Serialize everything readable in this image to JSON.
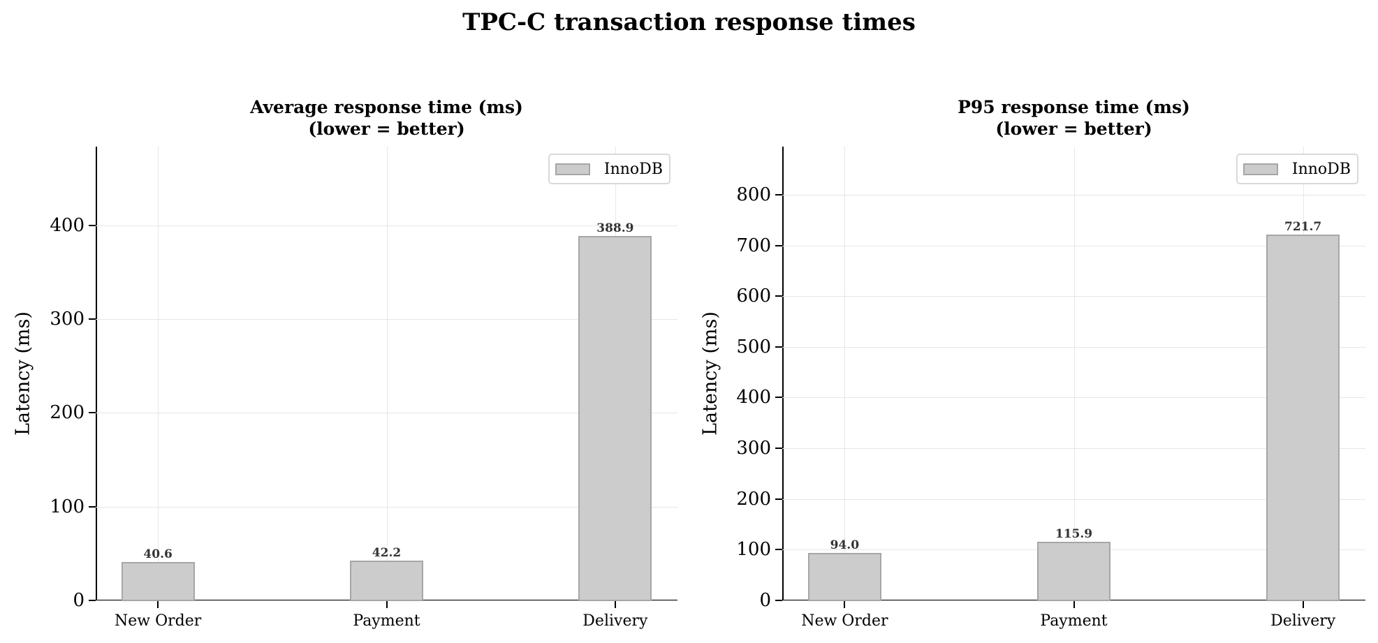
{
  "figure": {
    "suptitle": "TPC-C transaction response times"
  },
  "panels": [
    {
      "title_line1": "Average response time (ms)",
      "title_line2": "(lower = better)",
      "ylabel": "Latency (ms)",
      "legend_label": "InnoDB",
      "yticks": [
        "0",
        "100",
        "200",
        "300",
        "400"
      ],
      "categories": [
        "New Order",
        "Payment",
        "Delivery"
      ],
      "value_labels": [
        "40.6",
        "42.2",
        "388.9"
      ]
    },
    {
      "title_line1": "P95 response time (ms)",
      "title_line2": "(lower = better)",
      "ylabel": "Latency (ms)",
      "legend_label": "InnoDB",
      "yticks": [
        "0",
        "100",
        "200",
        "300",
        "400",
        "500",
        "600",
        "700",
        "800"
      ],
      "categories": [
        "New Order",
        "Payment",
        "Delivery"
      ],
      "value_labels": [
        "94.0",
        "115.9",
        "721.7"
      ]
    }
  ],
  "colors": {
    "bar_fill": "#cccccc",
    "bar_edge": "#a6a6a6",
    "grid": "#e6e6e6",
    "value_label": "#333333"
  },
  "chart_data": [
    {
      "type": "bar",
      "title": "Average response time (ms) (lower = better)",
      "suptitle": "TPC-C transaction response times",
      "categories": [
        "New Order",
        "Payment",
        "Delivery"
      ],
      "series": [
        {
          "name": "InnoDB",
          "values": [
            40.6,
            42.2,
            388.9
          ]
        }
      ],
      "xlabel": "",
      "ylabel": "Latency (ms)",
      "ylim": [
        0,
        484
      ],
      "yticks": [
        0,
        100,
        200,
        300,
        400
      ],
      "grid": true,
      "legend_position": "upper right"
    },
    {
      "type": "bar",
      "title": "P95 response time (ms) (lower = better)",
      "suptitle": "TPC-C transaction response times",
      "categories": [
        "New Order",
        "Payment",
        "Delivery"
      ],
      "series": [
        {
          "name": "InnoDB",
          "values": [
            94.0,
            115.9,
            721.7
          ]
        }
      ],
      "xlabel": "",
      "ylabel": "Latency (ms)",
      "ylim": [
        0,
        895
      ],
      "yticks": [
        0,
        100,
        200,
        300,
        400,
        500,
        600,
        700,
        800
      ],
      "grid": true,
      "legend_position": "upper right"
    }
  ]
}
